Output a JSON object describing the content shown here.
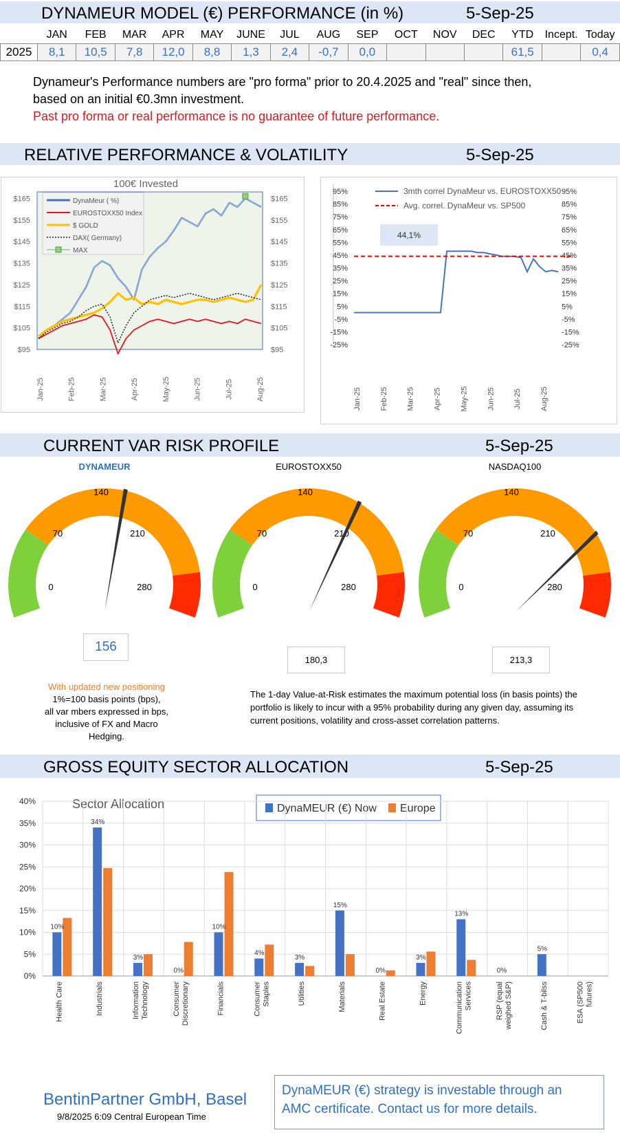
{
  "header": {
    "title": "DYNAMEUR MODEL (€) PERFORMANCE (in %)",
    "date": "5-Sep-25"
  },
  "perf_table": {
    "columns": [
      "",
      "JAN",
      "FEB",
      "MAR",
      "APR",
      "MAY",
      "JUNE",
      "JUL",
      "AUG",
      "SEP",
      "OCT",
      "NOV",
      "DEC",
      "YTD",
      "Incept.",
      "Today"
    ],
    "row": [
      "2025",
      "8,1",
      "10,5",
      "7,8",
      "12,0",
      "8,8",
      "1,3",
      "2,4",
      "-0,7",
      "0,0",
      "",
      "",
      "",
      "61,5",
      "",
      "0,4"
    ]
  },
  "notes": {
    "line1": "Dynameur's Performance  numbers are \"pro forma\" prior to 20.4.2025 and \"real\" since then,",
    "line2": "based on an initial €0.3mn investment.",
    "disclaimer": "Past pro forma or real performance  is no guarantee of future performance."
  },
  "relperf": {
    "title": "RELATIVE PERFORMANCE & VOLATILITY",
    "date": "5-Sep-25"
  },
  "var": {
    "title": "CURRENT VAR RISK PROFILE",
    "date": "5-Sep-25",
    "note_left": {
      "line1": "With updated new positioning",
      "line2": "1%=100  basis points (bps),",
      "line3": "all var mbers expressed in bps,",
      "line4": "inclusive of FX and Macro",
      "line5": "Hedging."
    },
    "note_right": "The 1-day Value-at-Risk estimates the maximum potential loss (in basis points) the portfolio is likely to incur with a 95%  probability during any given day, assuming its current positions, volatility and cross-asset correlation patterns."
  },
  "sector": {
    "title": "GROSS EQUITY SECTOR ALLOCATION",
    "date": "5-Sep-25"
  },
  "footer": {
    "firm": "BentinPartner GmbH, Basel",
    "timestamp": "9/8/2025 6:09  Central European Time",
    "box_line1": "DynaMEUR (€) strategy is  investable through an",
    "box_line2": "AMC certificate.  Contact us for more details."
  },
  "colors": {
    "band": "#dce6f4",
    "blue": "#4472c4",
    "orange": "#ed7d31",
    "red": "#e8141b",
    "gold": "#ffc000",
    "green": "#7fd13b",
    "gauge_orange": "#ff9900",
    "gauge_red": "#ff2a00"
  },
  "chart_data": [
    {
      "id": "invested",
      "type": "line",
      "title": "100€ Invested",
      "x_labels": [
        "Jan-25",
        "Feb-25",
        "Mar-25",
        "Apr-25",
        "May-25",
        "Jun-25",
        "Jul-25",
        "Aug-25"
      ],
      "y_ticks": [
        "$95",
        "$105",
        "$115",
        "$125",
        "$135",
        "$145",
        "$155",
        "$165"
      ],
      "ylim": [
        95,
        170
      ],
      "legend": [
        "DynaMeur ( %)",
        "EUROSTOXX50 Index",
        "$ GOLD",
        "DAX( Germany)",
        "MAX"
      ],
      "series": [
        {
          "name": "DynaMeur ( %)",
          "values": [
            100,
            104,
            106,
            109,
            112,
            118,
            124,
            133,
            136,
            134,
            128,
            124,
            118,
            132,
            138,
            142,
            145,
            150,
            156,
            154,
            152,
            158,
            160,
            157,
            163,
            161,
            165,
            163,
            161
          ]
        },
        {
          "name": "EUROSTOXX50 Index",
          "values": [
            100,
            102,
            104,
            106,
            107,
            108,
            109,
            111,
            110,
            104,
            93,
            100,
            104,
            106,
            108,
            109,
            108,
            107,
            108,
            109,
            108,
            109,
            108,
            107,
            108,
            107,
            109,
            108,
            107
          ]
        },
        {
          "name": "$ GOLD",
          "values": [
            101,
            104,
            106,
            108,
            109,
            110,
            111,
            112,
            114,
            117,
            121,
            118,
            119,
            116,
            117,
            116,
            118,
            117,
            116,
            117,
            118,
            118,
            117,
            118,
            119,
            118,
            117,
            118,
            125
          ]
        },
        {
          "name": "DAX( Germany)",
          "values": [
            100,
            103,
            105,
            107,
            108,
            110,
            113,
            115,
            116,
            110,
            98,
            106,
            112,
            115,
            118,
            119,
            120,
            119,
            120,
            121,
            120,
            119,
            118,
            119,
            120,
            121,
            120,
            119,
            118
          ]
        }
      ],
      "max_marker": {
        "series": "DynaMeur ( %)",
        "value": 166
      }
    },
    {
      "id": "correlation",
      "type": "line",
      "x_labels": [
        "Jan-25",
        "Feb-25",
        "Mar-25",
        "Apr-25",
        "May-25",
        "Jun-25",
        "Jul-25",
        "Aug-25"
      ],
      "y_ticks": [
        "95%",
        "85%",
        "75%",
        "65%",
        "55%",
        "45%",
        "35%",
        "25%",
        "15%",
        "5%",
        "-5%",
        "-15%",
        "-25%"
      ],
      "ylim": [
        -25,
        95
      ],
      "series": [
        {
          "name": "3mth correl DynaMeur vs. EUROSTOXX50",
          "values": [
            0,
            0,
            0,
            0,
            0,
            0,
            0,
            0,
            0,
            0,
            0,
            0,
            0,
            0,
            0,
            48,
            48,
            48,
            48,
            48,
            47,
            47,
            46,
            45,
            44,
            44,
            44,
            43,
            32,
            42,
            36,
            32,
            33,
            32
          ]
        },
        {
          "name": "Avg. correl. DynaMeur vs. SP500",
          "value": 44.1
        }
      ],
      "annotation": "44,1%"
    },
    {
      "id": "var_gauges",
      "type": "gauge",
      "scale": {
        "min": 0,
        "max": 280,
        "ticks": [
          "0",
          "70",
          "140",
          "210",
          "280"
        ]
      },
      "bands": [
        {
          "from": 0,
          "to": 70,
          "color": "green"
        },
        {
          "from": 70,
          "to": 245,
          "color": "orange"
        },
        {
          "from": 245,
          "to": 280,
          "color": "red"
        }
      ],
      "gauges": [
        {
          "name": "DYNAMEUR",
          "value": 156,
          "label": "156"
        },
        {
          "name": "EUROSTOXX50",
          "value": 180.3,
          "label": "180,3"
        },
        {
          "name": "NASDAQ100",
          "value": 213.3,
          "label": "213,3"
        }
      ]
    },
    {
      "id": "sector_allocation",
      "type": "bar",
      "title": "Sector Allocation",
      "categories": [
        "Health Care",
        "Industrials",
        "Information Technology",
        "Consumer Discretionary",
        "Financials",
        "Consumer Staples",
        "Utilities",
        "Materials",
        "Real Estate",
        "Energy",
        "Communication Services",
        "RSP (equal weighed S&P)",
        "Cash & T-bilss",
        "ESA (SP500 futures)"
      ],
      "series": [
        {
          "name": "DynaMEUR (€) Now",
          "values": [
            10,
            34,
            3,
            0,
            10,
            4,
            3,
            15,
            0,
            3,
            13,
            0,
            5,
            null
          ],
          "labels": [
            "10%",
            "34%",
            "3%",
            "0%",
            "10%",
            "4%",
            "3%",
            "15%",
            "0%",
            "3%",
            "13%",
            "0%",
            "5%",
            ""
          ]
        },
        {
          "name": "Europe",
          "values": [
            13.3,
            24.7,
            5.0,
            7.8,
            23.8,
            7.2,
            2.3,
            5.0,
            1.3,
            5.6,
            3.7,
            null,
            null,
            null
          ]
        }
      ],
      "y_ticks": [
        "0%",
        "5%",
        "10%",
        "15%",
        "20%",
        "25%",
        "30%",
        "35%",
        "40%"
      ],
      "ylim": [
        0,
        40
      ]
    }
  ]
}
